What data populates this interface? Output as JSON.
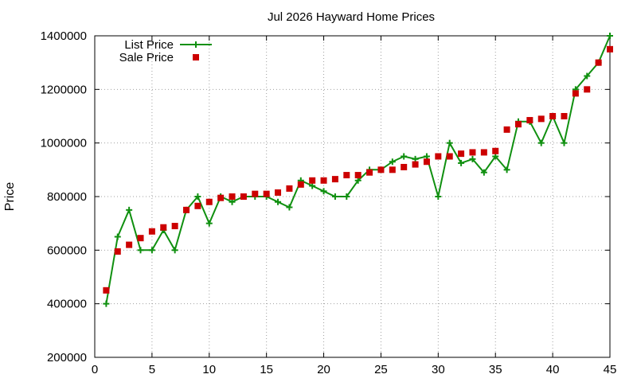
{
  "chart_data": {
    "type": "line",
    "title": "Jul 2026 Hayward Home Prices",
    "xlabel": "",
    "ylabel": "Price",
    "xlim": [
      0,
      45
    ],
    "ylim": [
      200000,
      1400000
    ],
    "x_ticks": [
      0,
      5,
      10,
      15,
      20,
      25,
      30,
      35,
      40,
      45
    ],
    "y_ticks": [
      200000,
      400000,
      600000,
      800000,
      1000000,
      1200000,
      1400000
    ],
    "grid": true,
    "legend_position": "top-left",
    "series": [
      {
        "name": "List Price",
        "style": "line+plus",
        "color": "#109010",
        "x": [
          1,
          2,
          3,
          4,
          5,
          6,
          7,
          8,
          9,
          10,
          11,
          12,
          13,
          14,
          15,
          16,
          17,
          18,
          19,
          20,
          21,
          22,
          23,
          24,
          25,
          26,
          27,
          28,
          29,
          30,
          31,
          32,
          33,
          34,
          35,
          36,
          37,
          38,
          39,
          40,
          41,
          42,
          43,
          44,
          45
        ],
        "values": [
          400000,
          650000,
          750000,
          600000,
          600000,
          675000,
          600000,
          750000,
          800000,
          700000,
          800000,
          780000,
          800000,
          800000,
          800000,
          780000,
          760000,
          860000,
          840000,
          820000,
          800000,
          800000,
          860000,
          900000,
          900000,
          930000,
          950000,
          940000,
          950000,
          800000,
          1000000,
          925000,
          940000,
          890000,
          950000,
          900000,
          1080000,
          1080000,
          1000000,
          1100000,
          1000000,
          1200000,
          1250000,
          1300000,
          1400000
        ]
      },
      {
        "name": "Sale Price",
        "style": "square",
        "color": "#cc0000",
        "x": [
          1,
          2,
          3,
          4,
          5,
          6,
          7,
          8,
          9,
          10,
          11,
          12,
          13,
          14,
          15,
          16,
          17,
          18,
          19,
          20,
          21,
          22,
          23,
          24,
          25,
          26,
          27,
          28,
          29,
          30,
          31,
          32,
          33,
          34,
          35,
          36,
          37,
          38,
          39,
          40,
          41,
          42,
          43,
          44,
          45
        ],
        "values": [
          450000,
          595000,
          620000,
          645000,
          670000,
          685000,
          690000,
          750000,
          765000,
          780000,
          795000,
          800000,
          800000,
          810000,
          810000,
          815000,
          830000,
          845000,
          860000,
          860000,
          865000,
          880000,
          880000,
          890000,
          900000,
          900000,
          910000,
          920000,
          930000,
          950000,
          950000,
          960000,
          965000,
          965000,
          970000,
          1050000,
          1070000,
          1085000,
          1090000,
          1100000,
          1100000,
          1185000,
          1200000,
          1300000,
          1350000
        ]
      }
    ]
  }
}
